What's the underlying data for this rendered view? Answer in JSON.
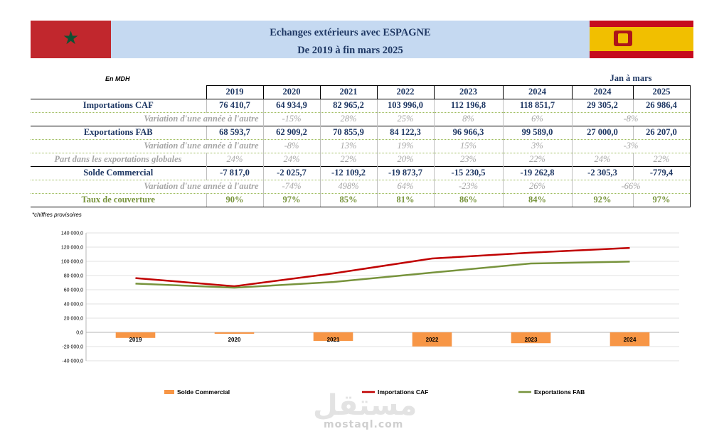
{
  "header": {
    "title_line1": "Echanges extérieurs avec ESPAGNE",
    "title_line2": "De 2019 à fin mars 2025",
    "flag_left": "morocco-flag-icon",
    "flag_right": "spain-flag-icon"
  },
  "table": {
    "unit": "En MDH",
    "period_header": "Jan à mars",
    "columns": [
      "2019",
      "2020",
      "2021",
      "2022",
      "2023",
      "2024",
      "2024",
      "2025"
    ],
    "rows": [
      {
        "type": "main",
        "label": "Importations  CAF",
        "values": [
          "76 410,7",
          "64 934,9",
          "82 965,2",
          "103 996,0",
          "112 196,8",
          "118 851,7",
          "29 305,2",
          "26 986,4"
        ]
      },
      {
        "type": "var",
        "label": "Variation d'une année à l'autre",
        "values": [
          "",
          "-15%",
          "28%",
          "25%",
          "8%",
          "6%"
        ],
        "period": "-8%"
      },
      {
        "type": "main",
        "label": "Exportations  FAB",
        "values": [
          "68 593,7",
          "62 909,2",
          "70 855,9",
          "84 122,3",
          "96 966,3",
          "99 589,0",
          "27 000,0",
          "26 207,0"
        ]
      },
      {
        "type": "var",
        "label": "Variation d'une année à l'autre",
        "values": [
          "",
          "-8%",
          "13%",
          "19%",
          "15%",
          "3%"
        ],
        "period": "-3%"
      },
      {
        "type": "part",
        "label": "Part dans les exportations globales",
        "values": [
          "24%",
          "24%",
          "22%",
          "20%",
          "23%",
          "22%",
          "24%",
          "22%"
        ]
      },
      {
        "type": "main",
        "label": "Solde Commercial",
        "values": [
          "-7 817,0",
          "-2 025,7",
          "-12 109,2",
          "-19 873,7",
          "-15 230,5",
          "-19 262,8",
          "-2 305,3",
          "-779,4"
        ]
      },
      {
        "type": "var",
        "label": "Variation d'une année à l'autre",
        "values": [
          "",
          "-74%",
          "498%",
          "64%",
          "-23%",
          "26%"
        ],
        "period": "-66%"
      },
      {
        "type": "taux",
        "label": "Taux de couverture",
        "values": [
          "90%",
          "97%",
          "85%",
          "81%",
          "86%",
          "84%",
          "92%",
          "97%"
        ]
      }
    ],
    "footnote": "*chiffres provisoires"
  },
  "chart_data": {
    "type": "bar",
    "categories": [
      "2019",
      "2020",
      "2021",
      "2022",
      "2023",
      "2024"
    ],
    "series": [
      {
        "name": "Solde Commercial",
        "kind": "bar",
        "color": "#f79646",
        "values": [
          -7817.0,
          -2025.7,
          -12109.2,
          -19873.7,
          -15230.5,
          -19262.8
        ]
      },
      {
        "name": "Importations  CAF",
        "kind": "line",
        "color": "#c00000",
        "values": [
          76410.7,
          64934.9,
          82965.2,
          103996.0,
          112196.8,
          118851.7
        ]
      },
      {
        "name": "Exportations  FAB",
        "kind": "line",
        "color": "#77933c",
        "values": [
          68593.7,
          62909.2,
          70855.9,
          84122.3,
          96966.3,
          99589.0
        ]
      }
    ],
    "ylim": [
      -40000,
      140000
    ],
    "yticks": [
      "140 000,0",
      "120 000,0",
      "100 000,0",
      "80 000,0",
      "60 000,0",
      "40 000,0",
      "20 000,0",
      "0,0",
      "-20 000,0",
      "-40 000,0"
    ],
    "grid": true,
    "legend": "bottom"
  },
  "watermark": {
    "arabic": "مستقل",
    "latin": "mostaql.com"
  }
}
